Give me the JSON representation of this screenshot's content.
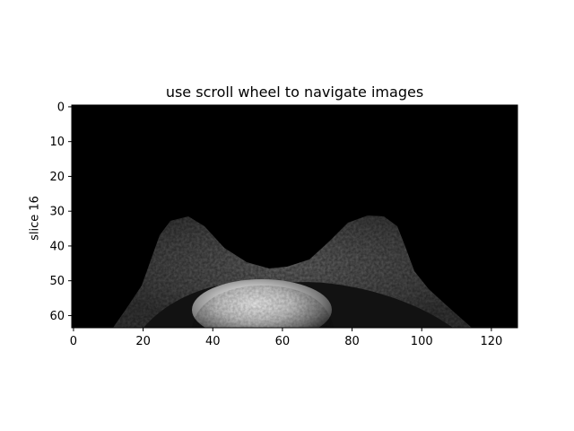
{
  "title": "use scroll wheel to navigate images",
  "ylabel": "slice 16",
  "chart_data": {
    "type": "heatmap",
    "title": "use scroll wheel to navigate images",
    "ylabel": "slice 16",
    "xlabel": "",
    "xlim": [
      -0.5,
      127.5
    ],
    "ylim": [
      63.5,
      -0.5
    ],
    "xticks": [
      0,
      20,
      40,
      60,
      80,
      100,
      120
    ],
    "yticks": [
      0,
      10,
      20,
      30,
      40,
      50,
      60
    ],
    "colormap": "gray",
    "image_shape": [
      64,
      128
    ]
  }
}
